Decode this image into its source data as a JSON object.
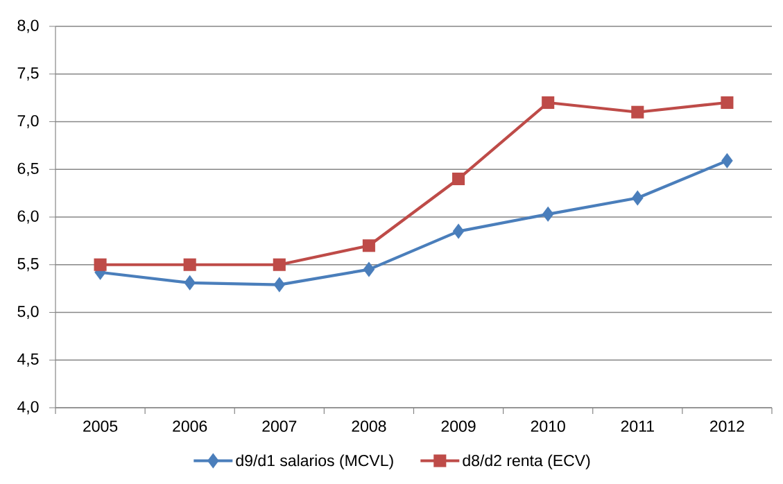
{
  "chart_data": {
    "type": "line",
    "categories": [
      "2005",
      "2006",
      "2007",
      "2008",
      "2009",
      "2010",
      "2011",
      "2012"
    ],
    "series": [
      {
        "name": "d9/d1 salarios (MCVL)",
        "color": "#4a7ebb",
        "marker": "diamond",
        "values": [
          5.42,
          5.31,
          5.29,
          5.45,
          5.85,
          6.03,
          6.2,
          6.59
        ]
      },
      {
        "name": "d8/d2 renta (ECV)",
        "color": "#be4b48",
        "marker": "square",
        "values": [
          5.5,
          5.5,
          5.5,
          5.7,
          6.4,
          7.2,
          7.1,
          7.2
        ]
      }
    ],
    "ylim": [
      4,
      8
    ],
    "yticks": [
      {
        "value": 4,
        "label": "4,0"
      },
      {
        "value": 4.5,
        "label": "4,5"
      },
      {
        "value": 5,
        "label": "5,0"
      },
      {
        "value": 5.5,
        "label": "5,5"
      },
      {
        "value": 6,
        "label": "6,0"
      },
      {
        "value": 6.5,
        "label": "6,5"
      },
      {
        "value": 7,
        "label": "7,0"
      },
      {
        "value": 7.5,
        "label": "7,5"
      },
      {
        "value": 8,
        "label": "8,0"
      }
    ],
    "grid": "y",
    "legend": "bottom",
    "line_style": "solid"
  }
}
